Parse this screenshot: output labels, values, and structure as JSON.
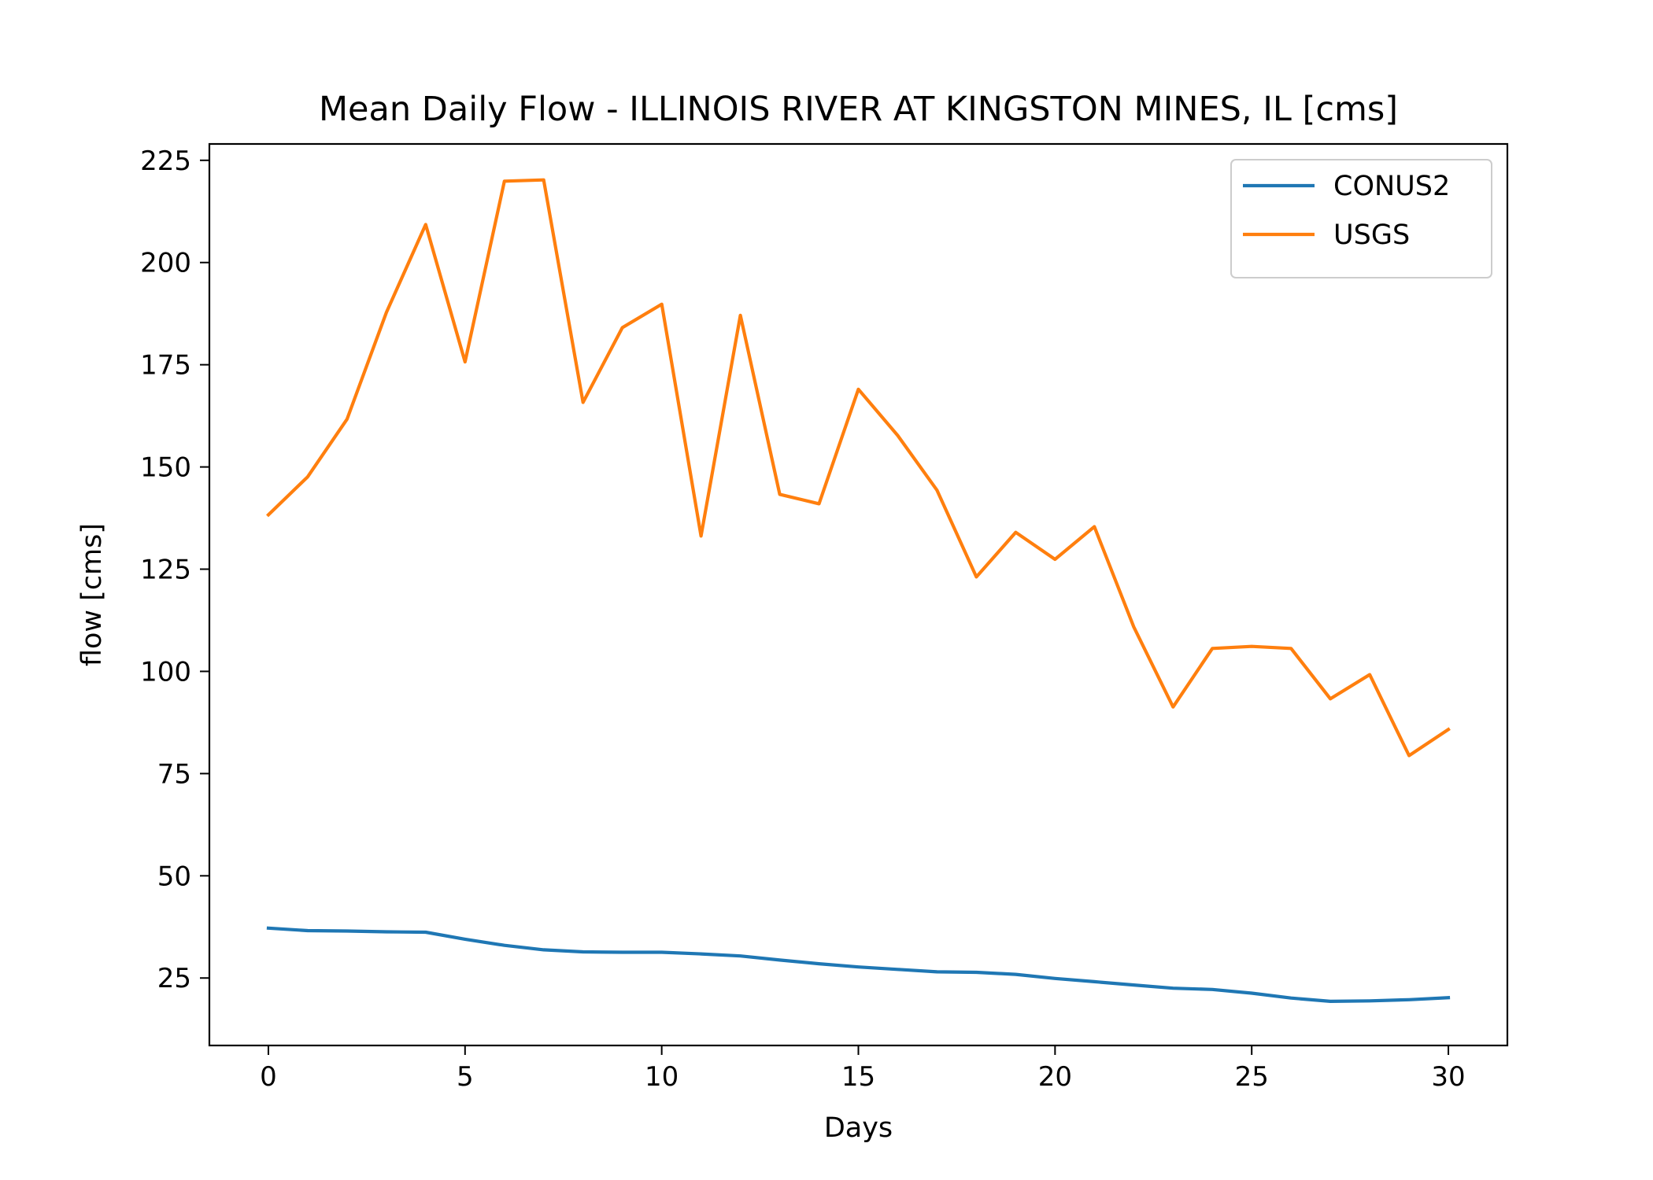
{
  "chart_data": {
    "type": "line",
    "title": "Mean Daily Flow - ILLINOIS RIVER AT KINGSTON MINES, IL [cms]",
    "xlabel": "Days",
    "ylabel": "flow [cms]",
    "xlim": [
      -1.5,
      31.5
    ],
    "ylim": [
      8.5,
      229
    ],
    "xticks": [
      0,
      5,
      10,
      15,
      20,
      25,
      30
    ],
    "yticks": [
      25,
      50,
      75,
      100,
      125,
      150,
      175,
      200,
      225
    ],
    "grid": false,
    "legend_position": "top-right",
    "x": [
      0,
      1,
      2,
      3,
      4,
      5,
      6,
      7,
      8,
      9,
      10,
      11,
      12,
      13,
      14,
      15,
      16,
      17,
      18,
      19,
      20,
      21,
      22,
      23,
      24,
      25,
      26,
      27,
      28,
      29,
      30
    ],
    "series": [
      {
        "name": "CONUS2",
        "color": "#1f77b4",
        "values": [
          37.2,
          36.6,
          36.5,
          36.3,
          36.2,
          34.5,
          33.0,
          31.9,
          31.4,
          31.3,
          31.3,
          30.9,
          30.4,
          29.4,
          28.5,
          27.7,
          27.1,
          26.5,
          26.4,
          25.9,
          24.9,
          24.1,
          23.3,
          22.5,
          22.2,
          21.3,
          20.1,
          19.3,
          19.4,
          19.7,
          20.2
        ]
      },
      {
        "name": "USGS",
        "color": "#ff7f0e",
        "values": [
          138.3,
          147.6,
          161.7,
          187.8,
          209.3,
          175.7,
          219.9,
          220.2,
          165.8,
          184.1,
          189.8,
          133.1,
          187.1,
          143.3,
          141.0,
          169.0,
          157.7,
          144.3,
          123.1,
          134.0,
          127.4,
          135.4,
          110.9,
          91.3,
          105.6,
          106.1,
          105.6,
          93.3,
          99.2,
          79.4,
          85.8
        ]
      }
    ]
  }
}
